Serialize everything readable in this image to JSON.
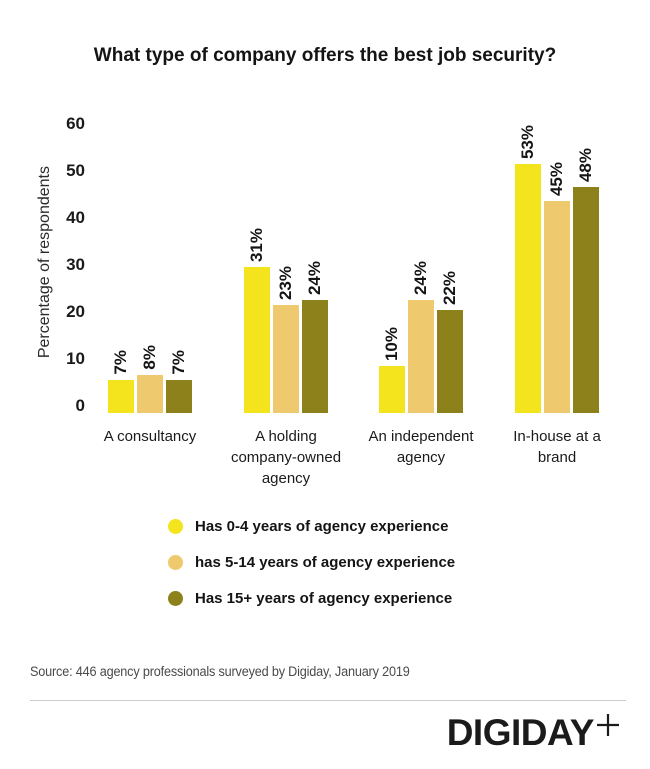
{
  "title": "What type of company offers the best job security?",
  "chart_data": {
    "type": "bar",
    "title": "What type of company offers the best job security?",
    "categories": [
      "A consultancy",
      "A holding\ncompany-owned\nagency",
      "An independent\nagency",
      "In-house at a\nbrand"
    ],
    "series": [
      {
        "name": "Has 0-4 years of agency experience",
        "color": "#F4E41E",
        "values": [
          7,
          31,
          10,
          53
        ]
      },
      {
        "name": "has 5-14 years of agency experience",
        "color": "#EFC96E",
        "values": [
          8,
          23,
          24,
          45
        ]
      },
      {
        "name": "Has 15+ years of agency experience",
        "color": "#8D811C",
        "values": [
          7,
          24,
          22,
          48
        ]
      }
    ],
    "value_label_suffix": "%",
    "xlabel": "",
    "ylabel": "Percentage of respondents",
    "yticks": [
      0,
      10,
      20,
      30,
      40,
      50,
      60
    ],
    "ylim": [
      0,
      60
    ],
    "grid": false,
    "axis_lines": false,
    "value_labels_rotated": true,
    "legend_position": "bottom"
  },
  "footer": {
    "source": "Source: 446 agency professionals surveyed by Digiday,  January 2019",
    "logo_text": "DIGIDAY",
    "logo_plus_icon": "plus-icon",
    "logo_color": "#1b1b1b"
  },
  "colors": {
    "background": "#ffffff",
    "text": "#141414",
    "muted_text": "#4a4a4a",
    "divider": "#cccccc"
  }
}
